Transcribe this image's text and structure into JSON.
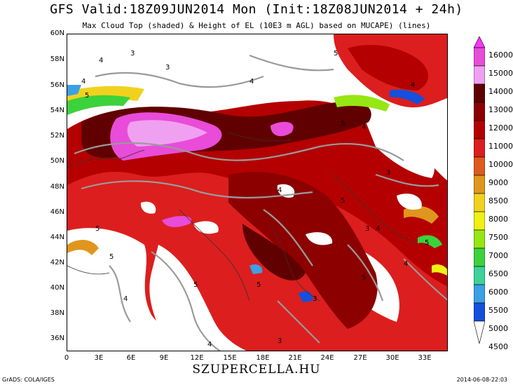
{
  "header": {
    "title": "GFS Valid:18Z09JUN2014 Mon (Init:18Z08JUN2014 + 24h)",
    "subtitle": "Max Cloud Top (shaded) & Height of EL (10E3 m AGL) based on MUCAPE) (lines)"
  },
  "axes": {
    "lat_labels": [
      "60N",
      "58N",
      "56N",
      "54N",
      "52N",
      "50N",
      "48N",
      "46N",
      "44N",
      "42N",
      "40N",
      "38N",
      "36N"
    ],
    "lon_labels": [
      "0",
      "3E",
      "6E",
      "9E",
      "12E",
      "15E",
      "18E",
      "21E",
      "24E",
      "27E",
      "30E",
      "33E"
    ]
  },
  "colorbar": {
    "labels": [
      "16000",
      "15000",
      "14000",
      "13000",
      "12000",
      "11000",
      "10000",
      "9000",
      "8500",
      "8000",
      "7500",
      "7000",
      "6500",
      "6000",
      "5500",
      "5000",
      "4500"
    ],
    "colors": {
      "16000": "#ff33ff",
      "15000": "#e84cd8",
      "14000": "#f0a0f0",
      "13000": "#600000",
      "12000": "#8c0000",
      "11000": "#b40000",
      "10000": "#dc1e1e",
      "9000": "#e05a1e",
      "8500": "#e0961e",
      "8000": "#f0d21e",
      "7500": "#f0f014",
      "7000": "#96e614",
      "6500": "#3cd23c",
      "6000": "#3cd29a",
      "5500": "#3ca0e6",
      "5000": "#1450dc",
      "4500": "#ffffff"
    }
  },
  "contour_labels": [
    "3",
    "4",
    "5"
  ],
  "footer": {
    "site": "SZUPERCELLA.HU",
    "credit": "GrADS: COLA/IGES",
    "timestamp": "2014-06-08-22:03"
  }
}
